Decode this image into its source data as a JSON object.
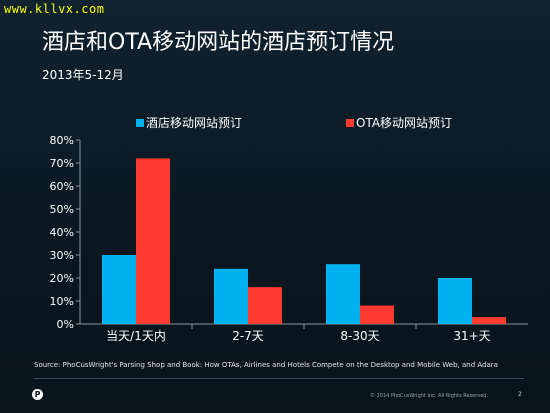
{
  "watermark": "www.kllvx.com",
  "chart_data": {
    "type": "bar",
    "title": "酒店和OTA移动网站的酒店预订情况",
    "subtitle": "2013年5-12月",
    "categories": [
      "当天/1天内",
      "2-7天",
      "8-30天",
      "31+天"
    ],
    "series": [
      {
        "name": "酒店移动网站预订",
        "color": "#00b2f0",
        "values": [
          30,
          24,
          26,
          20
        ]
      },
      {
        "name": "OTA移动网站预订",
        "color": "#ff3b2f",
        "values": [
          72,
          16,
          8,
          3
        ]
      }
    ],
    "yticks": [
      "0%",
      "10%",
      "20%",
      "30%",
      "40%",
      "50%",
      "60%",
      "70%",
      "80%"
    ],
    "ylim": [
      0,
      80
    ],
    "grid": false,
    "legend": "top"
  },
  "source": "Source:  PhoCusWright's Parsing Shop and Book: How OTAs, Airlines and Hotels Compete on the Desktop and Mobile Web, and Adara",
  "footer": {
    "logo_letter": "P",
    "copyright": "© 2014 PhoCusWright Inc. All Rights Reserved.",
    "page": "2"
  }
}
